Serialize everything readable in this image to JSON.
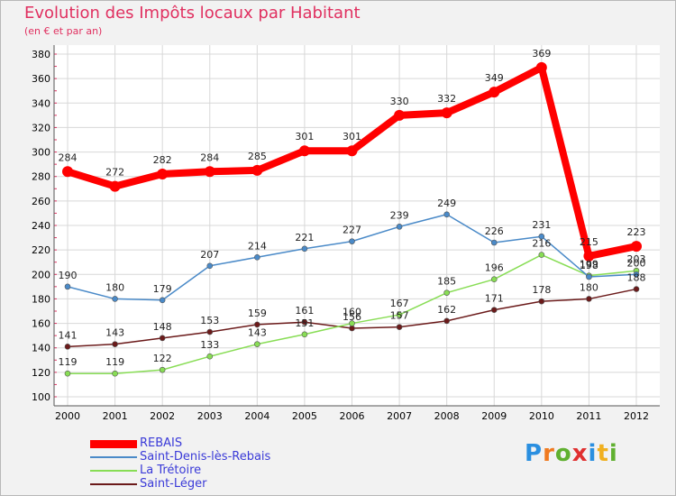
{
  "title": "Evolution des Impôts locaux par Habitant",
  "subtitle": "(en € et par an)",
  "brand": {
    "text": "Proxiti",
    "colors": [
      "#2a8fe0",
      "#f07a20",
      "#60b030",
      "#e03030",
      "#2a8fe0",
      "#f0b020",
      "#60b030"
    ]
  },
  "chart_data": {
    "type": "line",
    "x": [
      2000,
      2001,
      2002,
      2003,
      2004,
      2005,
      2006,
      2007,
      2008,
      2009,
      2010,
      2011,
      2012
    ],
    "ylim": [
      100,
      380
    ],
    "yticks": [
      100,
      120,
      140,
      160,
      180,
      200,
      220,
      240,
      260,
      280,
      300,
      320,
      340,
      360,
      380
    ],
    "grid": true,
    "series": [
      {
        "name": "REBAIS",
        "color": "#ff0000",
        "values": [
          284,
          272,
          282,
          284,
          285,
          301,
          301,
          330,
          332,
          349,
          369,
          215,
          223
        ]
      },
      {
        "name": "Saint-Denis-lès-Rebais",
        "color": "#4a8ac8",
        "values": [
          190,
          180,
          179,
          207,
          214,
          221,
          227,
          239,
          249,
          226,
          231,
          198,
          200
        ]
      },
      {
        "name": "La Trétoire",
        "color": "#88dd55",
        "values": [
          119,
          119,
          122,
          133,
          143,
          151,
          160,
          167,
          185,
          196,
          216,
          199,
          203
        ]
      },
      {
        "name": "Saint-Léger",
        "color": "#6b1a1a",
        "values": [
          141,
          143,
          148,
          153,
          159,
          161,
          156,
          157,
          162,
          171,
          178,
          180,
          188
        ]
      }
    ]
  }
}
